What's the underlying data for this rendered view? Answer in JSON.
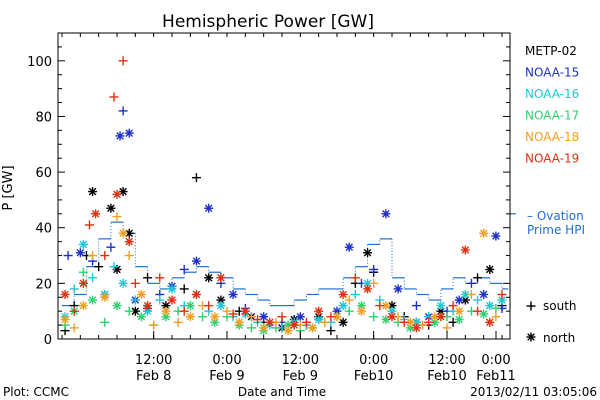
{
  "chart_data": {
    "type": "scatter",
    "title": "Hemispheric Power [GW]",
    "ylabel": "P [GW]",
    "xlabel": "Date and Time",
    "ylim": [
      0,
      110
    ],
    "yticks": [
      0,
      20,
      40,
      60,
      80,
      100
    ],
    "xlim_hours": [
      0,
      72
    ],
    "xticks": [
      {
        "hour": 15,
        "top": "12:00",
        "bottom": "Feb 8"
      },
      {
        "hour": 27,
        "top": "0:00",
        "bottom": "Feb 9"
      },
      {
        "hour": 39,
        "top": "12:00",
        "bottom": "Feb 9"
      },
      {
        "hour": 51,
        "top": "0:00",
        "bottom": "Feb10"
      },
      {
        "hour": 63,
        "top": "12:00",
        "bottom": "Feb10"
      },
      {
        "hour": 75,
        "top": "0:00",
        "bottom": "Feb11"
      }
    ],
    "legend": {
      "placement": "right",
      "markers": {
        "south": "+",
        "north": "*"
      }
    },
    "series": [
      {
        "name": "METP-02",
        "color": "#000000",
        "points": [
          [
            0.5,
            3,
            "+"
          ],
          [
            2,
            12,
            "+"
          ],
          [
            4,
            30,
            "+"
          ],
          [
            5,
            53,
            "*"
          ],
          [
            6,
            26,
            "+"
          ],
          [
            8,
            47,
            "*"
          ],
          [
            9,
            25,
            "*"
          ],
          [
            10,
            53,
            "*"
          ],
          [
            11,
            38,
            "*"
          ],
          [
            12,
            10,
            "*"
          ],
          [
            14,
            22,
            "+"
          ],
          [
            17,
            12,
            "*"
          ],
          [
            20,
            18,
            "+"
          ],
          [
            22,
            58,
            "+"
          ],
          [
            24,
            22,
            "*"
          ],
          [
            26,
            14,
            "*"
          ],
          [
            29,
            10,
            "+"
          ],
          [
            31,
            8,
            "*"
          ],
          [
            33,
            6,
            "+"
          ],
          [
            36,
            4,
            "*"
          ],
          [
            38,
            7,
            "*"
          ],
          [
            40,
            5,
            "+"
          ],
          [
            42,
            8,
            "*"
          ],
          [
            44,
            3,
            "+"
          ],
          [
            46,
            6,
            "*"
          ],
          [
            48,
            20,
            "+"
          ],
          [
            50,
            31,
            "*"
          ],
          [
            51,
            24,
            "+"
          ],
          [
            54,
            12,
            "*"
          ],
          [
            56,
            8,
            "+"
          ],
          [
            58,
            6,
            "*"
          ],
          [
            60,
            5,
            "+"
          ],
          [
            62,
            10,
            "*"
          ],
          [
            64,
            6,
            "+"
          ],
          [
            66,
            14,
            "*"
          ],
          [
            68,
            22,
            "+"
          ],
          [
            70,
            25,
            "*"
          ],
          [
            72,
            12,
            "+"
          ]
        ]
      },
      {
        "name": "NOAA-15",
        "color": "#1e30c8",
        "points": [
          [
            1,
            30,
            "+"
          ],
          [
            3,
            31,
            "*"
          ],
          [
            5,
            28,
            "+"
          ],
          [
            7,
            16,
            "*"
          ],
          [
            8,
            33,
            "+"
          ],
          [
            9.5,
            73,
            "*"
          ],
          [
            10,
            82,
            "+"
          ],
          [
            11,
            74,
            "*"
          ],
          [
            12,
            14,
            "*"
          ],
          [
            14,
            11,
            "*"
          ],
          [
            16,
            16,
            "+"
          ],
          [
            18,
            19,
            "*"
          ],
          [
            20,
            25,
            "+"
          ],
          [
            22,
            28,
            "*"
          ],
          [
            24,
            47,
            "*"
          ],
          [
            26,
            20,
            "+"
          ],
          [
            28,
            16,
            "*"
          ],
          [
            30,
            11,
            "+"
          ],
          [
            33,
            8,
            "*"
          ],
          [
            36,
            6,
            "+"
          ],
          [
            39,
            8,
            "*"
          ],
          [
            42,
            7,
            "+"
          ],
          [
            45,
            10,
            "*"
          ],
          [
            47,
            33,
            "*"
          ],
          [
            49,
            20,
            "+"
          ],
          [
            51,
            25,
            "+"
          ],
          [
            53,
            45,
            "*"
          ],
          [
            55,
            18,
            "*"
          ],
          [
            58,
            12,
            "+"
          ],
          [
            60,
            8,
            "*"
          ],
          [
            63,
            10,
            "+"
          ],
          [
            65,
            14,
            "*"
          ],
          [
            67,
            20,
            "+"
          ],
          [
            69,
            16,
            "*"
          ],
          [
            71,
            37,
            "*"
          ],
          [
            72,
            11,
            "+"
          ]
        ]
      },
      {
        "name": "NOAA-16",
        "color": "#1ec8d8",
        "points": [
          [
            0.5,
            8,
            "*"
          ],
          [
            2,
            18,
            "+"
          ],
          [
            3.5,
            34,
            "*"
          ],
          [
            5,
            22,
            "+"
          ],
          [
            7,
            16,
            "*"
          ],
          [
            8.5,
            26,
            "+"
          ],
          [
            10,
            20,
            "*"
          ],
          [
            12,
            14,
            "+"
          ],
          [
            14,
            10,
            "*"
          ],
          [
            16,
            14,
            "+"
          ],
          [
            18,
            18,
            "*"
          ],
          [
            20,
            12,
            "+"
          ],
          [
            22,
            16,
            "*"
          ],
          [
            24,
            10,
            "+"
          ],
          [
            26,
            12,
            "*"
          ],
          [
            28,
            8,
            "+"
          ],
          [
            30,
            9,
            "*"
          ],
          [
            32,
            6,
            "+"
          ],
          [
            34,
            5,
            "*"
          ],
          [
            36,
            4,
            "+"
          ],
          [
            38,
            6,
            "*"
          ],
          [
            40,
            5,
            "+"
          ],
          [
            42,
            7,
            "*"
          ],
          [
            44,
            6,
            "+"
          ],
          [
            46,
            12,
            "*"
          ],
          [
            48,
            16,
            "+"
          ],
          [
            50,
            20,
            "*"
          ],
          [
            52,
            14,
            "+"
          ],
          [
            54,
            10,
            "*"
          ],
          [
            56,
            7,
            "+"
          ],
          [
            58,
            6,
            "*"
          ],
          [
            60,
            8,
            "+"
          ],
          [
            62,
            12,
            "*"
          ],
          [
            64,
            10,
            "+"
          ],
          [
            66,
            16,
            "*"
          ],
          [
            68,
            14,
            "+"
          ],
          [
            70,
            12,
            "*"
          ],
          [
            72,
            14,
            "*"
          ]
        ]
      },
      {
        "name": "NOAA-17",
        "color": "#30d070",
        "points": [
          [
            0.5,
            5,
            "+"
          ],
          [
            2,
            10,
            "*"
          ],
          [
            3.5,
            24,
            "+"
          ],
          [
            5,
            14,
            "*"
          ],
          [
            7,
            6,
            "+"
          ],
          [
            9,
            12,
            "*"
          ],
          [
            11,
            10,
            "+"
          ],
          [
            13,
            8,
            "*"
          ],
          [
            15,
            5,
            "+"
          ],
          [
            17,
            8,
            "*"
          ],
          [
            19,
            10,
            "+"
          ],
          [
            21,
            12,
            "*"
          ],
          [
            23,
            8,
            "+"
          ],
          [
            25,
            6,
            "*"
          ],
          [
            27,
            8,
            "+"
          ],
          [
            29,
            5,
            "*"
          ],
          [
            31,
            4,
            "+"
          ],
          [
            33,
            3,
            "*"
          ],
          [
            35,
            4,
            "+"
          ],
          [
            37,
            5,
            "*"
          ],
          [
            39,
            3,
            "+"
          ],
          [
            41,
            4,
            "*"
          ],
          [
            43,
            6,
            "+"
          ],
          [
            45,
            8,
            "*"
          ],
          [
            47,
            10,
            "+"
          ],
          [
            49,
            12,
            "*"
          ],
          [
            51,
            8,
            "+"
          ],
          [
            53,
            7,
            "*"
          ],
          [
            55,
            6,
            "+"
          ],
          [
            57,
            4,
            "*"
          ],
          [
            59,
            5,
            "+"
          ],
          [
            61,
            6,
            "*"
          ],
          [
            63,
            8,
            "+"
          ],
          [
            65,
            7,
            "*"
          ],
          [
            67,
            10,
            "+"
          ],
          [
            69,
            9,
            "*"
          ],
          [
            71,
            11,
            "+"
          ]
        ]
      },
      {
        "name": "NOAA-18",
        "color": "#f0a020",
        "points": [
          [
            0.5,
            7,
            "*"
          ],
          [
            2,
            4,
            "+"
          ],
          [
            3.5,
            12,
            "*"
          ],
          [
            5,
            30,
            "+"
          ],
          [
            7,
            15,
            "*"
          ],
          [
            9,
            44,
            "+"
          ],
          [
            10,
            38,
            "*"
          ],
          [
            11,
            30,
            "+"
          ],
          [
            13,
            16,
            "*"
          ],
          [
            15,
            5,
            "+"
          ],
          [
            17,
            10,
            "*"
          ],
          [
            19,
            6,
            "+"
          ],
          [
            21,
            8,
            "*"
          ],
          [
            23,
            12,
            "+"
          ],
          [
            25,
            8,
            "*"
          ],
          [
            27,
            10,
            "+"
          ],
          [
            29,
            6,
            "*"
          ],
          [
            31,
            8,
            "+"
          ],
          [
            33,
            4,
            "*"
          ],
          [
            35,
            6,
            "+"
          ],
          [
            37,
            3,
            "*"
          ],
          [
            39,
            5,
            "+"
          ],
          [
            41,
            4,
            "*"
          ],
          [
            43,
            6,
            "+"
          ],
          [
            45,
            8,
            "*"
          ],
          [
            47,
            14,
            "+"
          ],
          [
            49,
            10,
            "*"
          ],
          [
            51,
            20,
            "+"
          ],
          [
            53,
            12,
            "*"
          ],
          [
            55,
            8,
            "+"
          ],
          [
            57,
            6,
            "*"
          ],
          [
            59,
            5,
            "+"
          ],
          [
            61,
            8,
            "*"
          ],
          [
            63,
            4,
            "+"
          ],
          [
            65,
            10,
            "*"
          ],
          [
            67,
            16,
            "+"
          ],
          [
            69,
            38,
            "*"
          ],
          [
            71,
            8,
            "+"
          ]
        ]
      },
      {
        "name": "NOAA-19",
        "color": "#e03010",
        "points": [
          [
            0.5,
            16,
            "*"
          ],
          [
            2,
            10,
            "+"
          ],
          [
            3.5,
            20,
            "*"
          ],
          [
            4.5,
            41,
            "+"
          ],
          [
            5.5,
            45,
            "*"
          ],
          [
            7,
            30,
            "+"
          ],
          [
            8.5,
            87,
            "+"
          ],
          [
            9,
            52,
            "*"
          ],
          [
            10,
            100,
            "+"
          ],
          [
            11,
            35,
            "*"
          ],
          [
            12,
            20,
            "+"
          ],
          [
            14,
            12,
            "*"
          ],
          [
            16,
            22,
            "+"
          ],
          [
            18,
            14,
            "*"
          ],
          [
            20,
            10,
            "+"
          ],
          [
            22,
            16,
            "*"
          ],
          [
            24,
            12,
            "+"
          ],
          [
            26,
            22,
            "*"
          ],
          [
            28,
            9,
            "+"
          ],
          [
            30,
            10,
            "*"
          ],
          [
            32,
            7,
            "+"
          ],
          [
            34,
            6,
            "*"
          ],
          [
            36,
            8,
            "+"
          ],
          [
            38,
            5,
            "*"
          ],
          [
            40,
            6,
            "+"
          ],
          [
            42,
            10,
            "*"
          ],
          [
            44,
            8,
            "+"
          ],
          [
            46,
            16,
            "*"
          ],
          [
            48,
            22,
            "+"
          ],
          [
            50,
            18,
            "*"
          ],
          [
            52,
            12,
            "+"
          ],
          [
            54,
            8,
            "*"
          ],
          [
            56,
            6,
            "+"
          ],
          [
            58,
            4,
            "*"
          ],
          [
            60,
            6,
            "+"
          ],
          [
            62,
            8,
            "*"
          ],
          [
            64,
            12,
            "+"
          ],
          [
            66,
            32,
            "*"
          ],
          [
            68,
            10,
            "+"
          ],
          [
            70,
            6,
            "*"
          ],
          [
            72,
            16,
            "+"
          ]
        ]
      }
    ],
    "ovation": {
      "name_line1": "– Ovation",
      "name_line2": "Prime HPI",
      "color": "#1e6fd0",
      "marker_value": 45,
      "x": [
        0,
        2,
        4,
        6,
        8,
        10,
        12,
        14,
        16,
        18,
        20,
        22,
        24,
        26,
        28,
        30,
        32,
        34,
        36,
        38,
        40,
        42,
        44,
        46,
        48,
        50,
        52,
        54,
        56,
        58,
        60,
        62,
        64,
        66,
        68,
        70,
        72
      ],
      "values": [
        12,
        16,
        26,
        36,
        42,
        38,
        26,
        20,
        18,
        22,
        24,
        26,
        24,
        22,
        18,
        16,
        14,
        12,
        12,
        14,
        16,
        18,
        18,
        22,
        26,
        34,
        36,
        22,
        18,
        16,
        14,
        18,
        22,
        20,
        22,
        20,
        18
      ]
    }
  },
  "footer": {
    "left": "Plot: CCMC",
    "right": "2013/02/11 03:05:06"
  }
}
